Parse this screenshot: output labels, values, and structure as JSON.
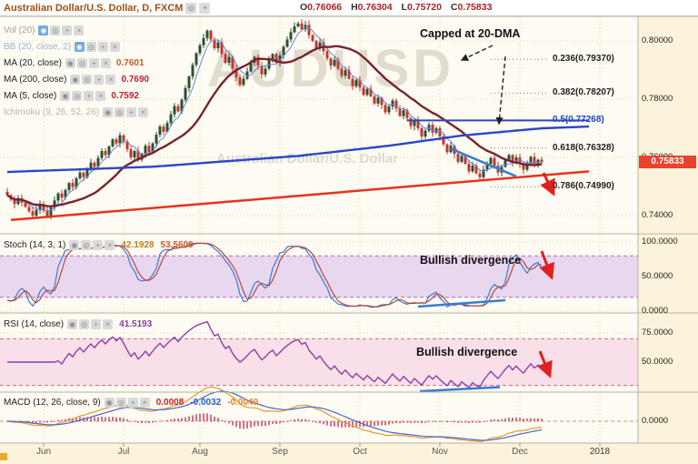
{
  "header": {
    "title": "Australian Dollar/U.S. Dollar, D, FXCM",
    "ohlc": [
      {
        "label": "O",
        "value": "0.76066"
      },
      {
        "label": "H",
        "value": "0.76304"
      },
      {
        "label": "L",
        "value": "0.75720"
      },
      {
        "label": "C",
        "value": "0.75833"
      }
    ]
  },
  "icons": {
    "eye": "◉",
    "settings": "◎",
    "plus": "+",
    "close": "×"
  },
  "legend": [
    {
      "label": "Vol (20)",
      "label_color": "#a3a097",
      "value": "",
      "accent": true
    },
    {
      "label": "BB (20, close, 2)",
      "label_color": "#9fb4cf",
      "value": "",
      "accent": true
    },
    {
      "label": "MA (20, close)",
      "label_color": "#222222",
      "value": "0.7601",
      "value_color": "#cc5a22",
      "accent": false
    },
    {
      "label": "MA (200, close)",
      "label_color": "#222222",
      "value": "0.7690",
      "value_color": "#bb2233",
      "accent": false
    },
    {
      "label": "MA (5, close)",
      "label_color": "#222222",
      "value": "0.7592",
      "value_color": "#bb2233",
      "accent": false
    },
    {
      "label": "Ichimoku (9, 26, 52, 26)",
      "label_color": "#b9b5ab",
      "value": "",
      "accent": false
    }
  ],
  "annotations": {
    "capped": "Capped at 20-DMA",
    "stoch_divergence": "Bullish divergence",
    "rsi_divergence": "Bullish divergence"
  },
  "fib_labels": [
    {
      "text": "0.236(0.79370)",
      "color": "#222222",
      "value": 0.7937
    },
    {
      "text": "0.382(0.78207)",
      "color": "#222222",
      "value": 0.78207
    },
    {
      "text": "0.5(0.77268)",
      "color": "#1f46c8",
      "value": 0.77268
    },
    {
      "text": "0.618(0.76328)",
      "color": "#222222",
      "value": 0.76328
    },
    {
      "text": "0.786(0.74990)",
      "color": "#222222",
      "value": 0.7499
    }
  ],
  "axes": {
    "price": [
      "0.80000",
      "0.78000",
      "0.76000",
      "0.74000"
    ],
    "stoch": [
      "100.0000",
      "50.0000",
      "0.0000"
    ],
    "rsi": [
      "75.0000",
      "50.0000"
    ],
    "macd": [
      "0.0000"
    ],
    "last_price": "0.75833"
  },
  "panels": {
    "stoch": {
      "title": "Stoch (14, 3, 1)",
      "values": [
        {
          "text": "42.1928",
          "color": "#c07f2a"
        },
        {
          "text": "53.5609",
          "color": "#d9542b"
        }
      ]
    },
    "rsi": {
      "title": "RSI (14, close)",
      "values": [
        {
          "text": "41.5193",
          "color": "#8b3fa8"
        }
      ]
    },
    "macd": {
      "title": "MACD (12, 26, close, 9)",
      "values": [
        {
          "text": "0.0008",
          "color": "#cc2222"
        },
        {
          "text": "-0.0032",
          "color": "#2a5bd0"
        },
        {
          "text": "-0.0040",
          "color": "#e0812b"
        }
      ]
    }
  },
  "time_axis": {
    "months": [
      "Jun",
      "Jul",
      "Aug",
      "Sep",
      "Oct",
      "Nov",
      "Dec"
    ],
    "year": "2018"
  },
  "watermark": {
    "line1": "AUDUSD",
    "line2": "Australian Dollar/U.S. Dollar"
  },
  "chart_data": {
    "type": "candlestick",
    "symbol": "AUD/USD",
    "timeframe": "D",
    "source": "FXCM",
    "ohlc_current": {
      "open": 0.76066,
      "high": 0.76304,
      "low": 0.7572,
      "close": 0.75833
    },
    "y_axis_range": [
      0.7335,
      0.8085
    ],
    "x_months": [
      "Jun",
      "Jul",
      "Aug",
      "Sep",
      "Oct",
      "Nov",
      "Dec"
    ],
    "closes": [
      0.747,
      0.7455,
      0.744,
      0.746,
      0.7445,
      0.743,
      0.7415,
      0.74,
      0.742,
      0.7438,
      0.7418,
      0.7398,
      0.7428,
      0.7452,
      0.7476,
      0.7462,
      0.7488,
      0.7512,
      0.7498,
      0.7528,
      0.7548,
      0.7532,
      0.7558,
      0.7582,
      0.7568,
      0.7598,
      0.7622,
      0.7608,
      0.7638,
      0.7662,
      0.7648,
      0.7676,
      0.7655,
      0.7628,
      0.76,
      0.7622,
      0.7592,
      0.7612,
      0.764,
      0.7618,
      0.7648,
      0.7678,
      0.7706,
      0.7688,
      0.7718,
      0.7748,
      0.7776,
      0.7758,
      0.7798,
      0.7838,
      0.7878,
      0.7918,
      0.7958,
      0.7985,
      0.801,
      0.8035,
      0.8005,
      0.7975,
      0.7995,
      0.7955,
      0.7925,
      0.7945,
      0.7905,
      0.7875,
      0.785,
      0.787,
      0.7895,
      0.7925,
      0.7945,
      0.7915,
      0.7885,
      0.7905,
      0.7935,
      0.7955,
      0.7925,
      0.795,
      0.798,
      0.8005,
      0.803,
      0.805,
      0.806,
      0.804,
      0.8055,
      0.802,
      0.8,
      0.7975,
      0.7995,
      0.7965,
      0.794,
      0.7915,
      0.7935,
      0.7905,
      0.788,
      0.79,
      0.787,
      0.7845,
      0.7865,
      0.784,
      0.7815,
      0.7835,
      0.781,
      0.7785,
      0.7805,
      0.778,
      0.7755,
      0.7775,
      0.7795,
      0.7768,
      0.7742,
      0.7762,
      0.7735,
      0.7708,
      0.7728,
      0.77,
      0.7672,
      0.7692,
      0.7712,
      0.7685,
      0.77,
      0.7672,
      0.7645,
      0.7618,
      0.764,
      0.7612,
      0.7585,
      0.7605,
      0.7578,
      0.7552,
      0.7572,
      0.7545,
      0.7532,
      0.7558,
      0.7578,
      0.7598,
      0.7572,
      0.7548,
      0.7568,
      0.759,
      0.7608,
      0.7582,
      0.76,
      0.7578,
      0.7558,
      0.758,
      0.7602,
      0.7578,
      0.7592,
      0.75833
    ],
    "ma200_points": [
      [
        0,
        0.755
      ],
      [
        40,
        0.7568
      ],
      [
        80,
        0.7605
      ],
      [
        105,
        0.764
      ],
      [
        125,
        0.7675
      ],
      [
        147,
        0.77
      ],
      [
        160,
        0.7706
      ]
    ],
    "fib_levels": {
      "0.236": 0.7937,
      "0.382": 0.78207,
      "0.5": 0.77268,
      "0.618": 0.76328,
      "0.786": 0.7499
    },
    "support_trendline": [
      [
        1,
        0.7385
      ],
      [
        160,
        0.7552
      ]
    ],
    "resistance_trendline": [
      [
        122,
        0.763
      ],
      [
        140,
        0.7535
      ]
    ],
    "indicators": {
      "stoch": {
        "k": 42.1928,
        "d": 53.5609
      },
      "rsi": 41.5193,
      "macd": {
        "macd": 0.0008,
        "signal": -0.0032,
        "hist": -0.004
      }
    },
    "ma_values": {
      "ma20": 0.7601,
      "ma200": 0.769,
      "ma5": 0.7592
    }
  }
}
